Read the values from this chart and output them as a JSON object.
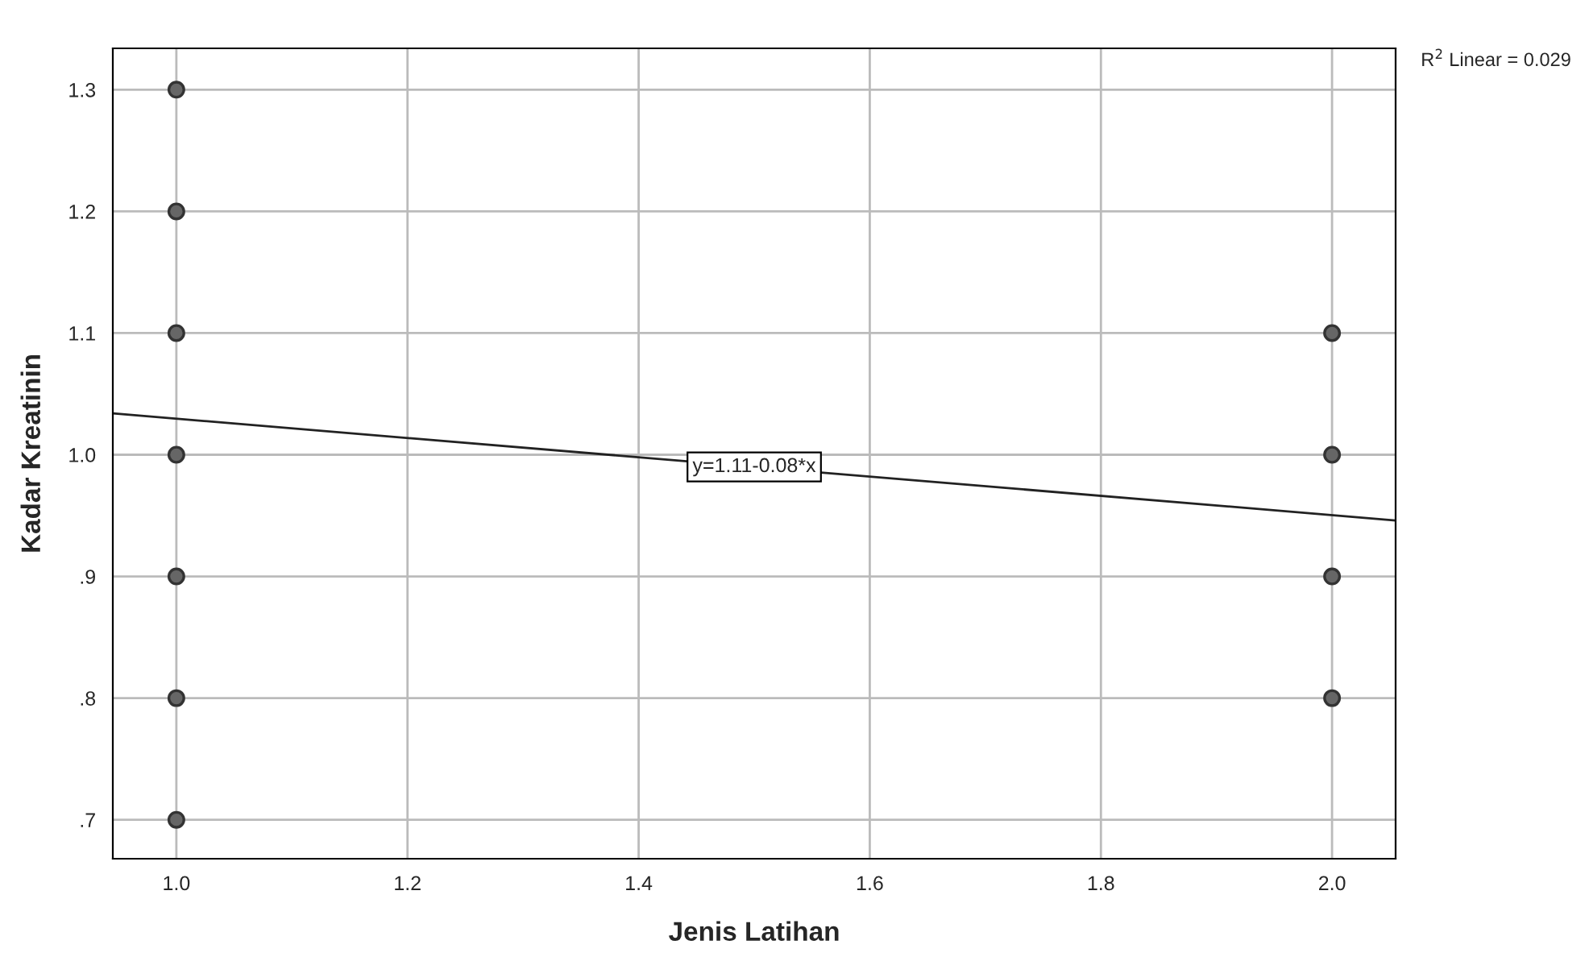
{
  "chart_data": {
    "type": "scatter",
    "xlabel": "Jenis Latihan",
    "ylabel": "Kadar Kreatinin",
    "series": [
      {
        "color": "#666666",
        "marker": "circle",
        "x": [
          1,
          1,
          1,
          1,
          1,
          1,
          1,
          2,
          2,
          2,
          2
        ],
        "values": [
          1.3,
          1.2,
          1.1,
          1.0,
          0.9,
          0.8,
          0.7,
          1.1,
          1.0,
          0.9,
          0.8
        ]
      },
      {
        "type": "line",
        "marker": "none",
        "color": "#222222",
        "x": [
          0.945,
          2.055
        ],
        "values": [
          1.034,
          0.946
        ]
      }
    ],
    "xlim": [
      0.945,
      2.055
    ],
    "ylim": [
      0.668,
      1.334
    ],
    "xticks": [
      {
        "value": 1.0,
        "label": "1.0"
      },
      {
        "value": 1.2,
        "label": "1.2"
      },
      {
        "value": 1.4,
        "label": "1.4"
      },
      {
        "value": 1.6,
        "label": "1.6"
      },
      {
        "value": 1.8,
        "label": "1.8"
      },
      {
        "value": 2.0,
        "label": "2.0"
      }
    ],
    "yticks": [
      {
        "value": 0.7,
        "label": ".7"
      },
      {
        "value": 0.8,
        "label": ".8"
      },
      {
        "value": 0.9,
        "label": ".9"
      },
      {
        "value": 1.0,
        "label": "1.0"
      },
      {
        "value": 1.1,
        "label": "1.1"
      },
      {
        "value": 1.2,
        "label": "1.2"
      },
      {
        "value": 1.3,
        "label": "1.3"
      }
    ],
    "grid": true,
    "annotations": [
      "R$^{2}$ Linear = 0.029",
      {
        "text": "y=1.11-0.08*x",
        "x": 1.5,
        "y": 0.99
      }
    ]
  }
}
